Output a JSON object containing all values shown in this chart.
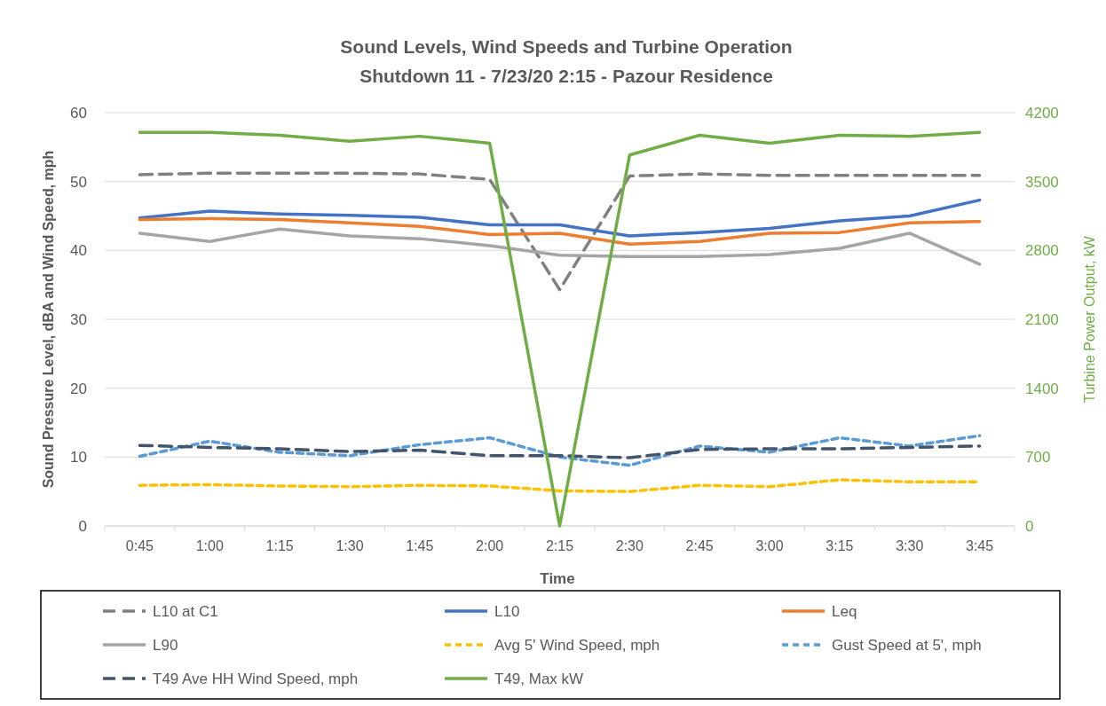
{
  "chart_data": {
    "type": "line",
    "title": "Sound Levels, Wind Speeds and Turbine Operation",
    "subtitle": "Shutdown 11 - 7/23/20 2:15 - Pazour Residence",
    "xlabel": "Time",
    "ylabel": "Sound Pressure Level, dBA and Wind Speed, mph",
    "y2label": "Turbine Power Output, kW",
    "categories": [
      "0:45",
      "1:00",
      "1:15",
      "1:30",
      "1:45",
      "2:00",
      "2:15",
      "2:30",
      "2:45",
      "3:00",
      "3:15",
      "3:30",
      "3:45"
    ],
    "ylim": [
      0,
      60
    ],
    "yticks": [
      0,
      10,
      20,
      30,
      40,
      50,
      60
    ],
    "y2lim": [
      0,
      4200
    ],
    "y2ticks": [
      0,
      700,
      1400,
      2100,
      2800,
      3500,
      4200
    ],
    "grid": "y",
    "legend": "bottom",
    "marker": "none",
    "series": [
      {
        "name": "L10 at C1",
        "color": "#808080",
        "line_style": "dashed",
        "values": [
          51.0,
          51.2,
          51.2,
          51.2,
          51.1,
          50.3,
          34.3,
          50.8,
          51.1,
          50.9,
          50.9,
          50.9,
          50.9
        ]
      },
      {
        "name": "L10",
        "color": "#4472c4",
        "line_style": "solid",
        "values": [
          44.7,
          45.7,
          45.3,
          45.1,
          44.8,
          43.7,
          43.7,
          42.1,
          42.6,
          43.2,
          44.3,
          45.0,
          47.3
        ]
      },
      {
        "name": "Leq",
        "color": "#ed7d31",
        "line_style": "solid",
        "values": [
          44.5,
          44.6,
          44.5,
          44.0,
          43.5,
          42.3,
          42.5,
          40.9,
          41.3,
          42.5,
          42.6,
          44.0,
          44.2
        ]
      },
      {
        "name": "L90",
        "color": "#a5a5a5",
        "line_style": "solid",
        "values": [
          42.5,
          41.3,
          43.1,
          42.1,
          41.7,
          40.7,
          39.3,
          39.1,
          39.1,
          39.4,
          40.3,
          42.5,
          38.0
        ]
      },
      {
        "name": "Avg 5' Wind Speed, mph",
        "color": "#ffc000",
        "line_style": "dotted",
        "values": [
          5.9,
          6.0,
          5.8,
          5.7,
          5.9,
          5.8,
          5.1,
          5.0,
          5.9,
          5.7,
          6.7,
          6.4,
          6.4
        ]
      },
      {
        "name": "Gust Speed at 5', mph",
        "color": "#5b9bd5",
        "line_style": "dotted",
        "values": [
          10.1,
          12.3,
          10.7,
          10.2,
          11.8,
          12.8,
          10.0,
          8.8,
          11.6,
          10.7,
          12.8,
          11.6,
          13.1
        ]
      },
      {
        "name": "T49 Ave HH Wind Speed, mph",
        "color": "#44546a",
        "line_style": "dashed",
        "values": [
          11.7,
          11.4,
          11.2,
          10.8,
          11.0,
          10.2,
          10.2,
          9.9,
          11.1,
          11.2,
          11.2,
          11.4,
          11.6
        ]
      },
      {
        "name": "T49, Max kW",
        "color": "#70ad47",
        "line_style": "solid",
        "axis": "y2",
        "values": [
          4000,
          4000,
          3970,
          3910,
          3960,
          3890,
          0,
          3770,
          3970,
          3890,
          3970,
          3960,
          4000
        ]
      }
    ]
  }
}
